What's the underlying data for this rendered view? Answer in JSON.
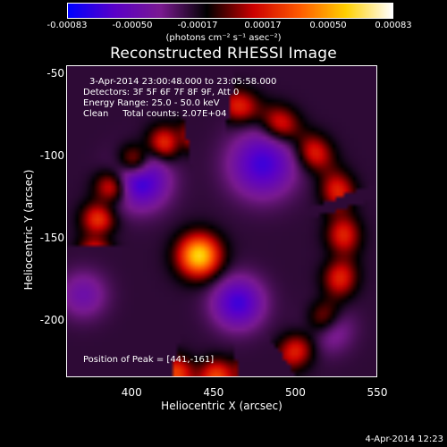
{
  "colorbar": {
    "ticks": [
      "-0.00083",
      "-0.00050",
      "-0.00017",
      "0.00017",
      "0.00050",
      "0.00083"
    ],
    "units": "(photons cm⁻² s⁻¹ asec⁻²)",
    "colors": [
      "#0000ff",
      "#5a00c8",
      "#7a1a90",
      "#000000",
      "#cc0000",
      "#ff5a00",
      "#ffd000",
      "#ffffff"
    ]
  },
  "chart_data": {
    "type": "heatmap",
    "title": "Reconstructed RHESSI Image",
    "xlabel": "Heliocentric X (arcsec)",
    "ylabel": "Heliocentric Y (arcsec)",
    "xlim": [
      360,
      550
    ],
    "ylim": [
      -235,
      -45
    ],
    "xticks": [
      400,
      450,
      500,
      550
    ],
    "yticks": [
      -50,
      -100,
      -150,
      -200
    ],
    "peak": {
      "x": 441,
      "y": -161
    },
    "sources": [
      {
        "x": 441,
        "y": -161,
        "amp": 1.0,
        "sigma": 9
      },
      {
        "x": 405,
        "y": -115,
        "amp": -0.6,
        "sigma": 12
      },
      {
        "x": 480,
        "y": -105,
        "amp": -0.55,
        "sigma": 14
      },
      {
        "x": 465,
        "y": -190,
        "amp": -0.55,
        "sigma": 11
      },
      {
        "x": 520,
        "y": -205,
        "amp": -0.35,
        "sigma": 10
      },
      {
        "x": 370,
        "y": -185,
        "amp": -0.3,
        "sigma": 10
      }
    ],
    "arcs": [
      {
        "cx": 445,
        "cy": -155,
        "r": 68,
        "amp": 0.55,
        "width": 7,
        "from": 100,
        "to": 215
      },
      {
        "cx": 445,
        "cy": -155,
        "r": 88,
        "amp": 0.5,
        "width": 7,
        "from": 20,
        "to": 80
      },
      {
        "cx": 445,
        "cy": -155,
        "r": 85,
        "amp": 0.5,
        "width": 7,
        "from": -55,
        "to": 15
      },
      {
        "cx": 445,
        "cy": -155,
        "r": 80,
        "amp": 0.6,
        "width": 7,
        "from": -105,
        "to": -75
      }
    ],
    "background": -0.25
  },
  "annotations": {
    "time": "3-Apr-2014 23:00:48.000 to 23:05:58.000",
    "detectors": "Detectors: 3F 5F 6F 7F 8F 9F, Att 0",
    "energy": "Energy Range: 25.0 - 50.0 keV",
    "method": "Clean     Total counts: 2.07E+04",
    "peak": "Position of Peak = [441,-161]"
  },
  "footer": "4-Apr-2014 12:23"
}
